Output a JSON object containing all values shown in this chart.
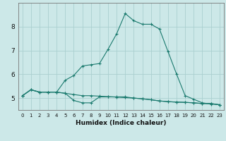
{
  "xlabel": "Humidex (Indice chaleur)",
  "x_ticks": [
    0,
    1,
    2,
    3,
    4,
    5,
    6,
    7,
    8,
    9,
    10,
    11,
    12,
    13,
    14,
    15,
    16,
    17,
    18,
    19,
    20,
    21,
    22,
    23
  ],
  "ylim": [
    4.5,
    9.0
  ],
  "yticks": [
    5,
    6,
    7,
    8
  ],
  "background_color": "#cce8e8",
  "line_color": "#1a7a6e",
  "grid_color": "#aacfcf",
  "line1_y": [
    5.1,
    5.35,
    5.25,
    5.25,
    5.25,
    5.2,
    4.9,
    4.8,
    4.8,
    5.05,
    5.05,
    5.05,
    5.05,
    5.0,
    4.97,
    4.93,
    4.88,
    4.85,
    4.83,
    4.82,
    4.8,
    4.77,
    4.77,
    4.72
  ],
  "line2_y": [
    5.1,
    5.35,
    5.25,
    5.25,
    5.25,
    5.2,
    5.15,
    5.1,
    5.1,
    5.08,
    5.06,
    5.04,
    5.02,
    5.0,
    4.97,
    4.93,
    4.88,
    4.85,
    4.83,
    4.82,
    4.8,
    4.77,
    4.77,
    4.72
  ],
  "line3_y": [
    5.1,
    5.35,
    5.25,
    5.25,
    5.25,
    5.75,
    5.95,
    6.35,
    6.4,
    6.45,
    7.05,
    7.7,
    8.55,
    8.25,
    8.1,
    8.1,
    7.9,
    6.95,
    6.0,
    5.1,
    4.95,
    4.8,
    4.75,
    4.72
  ]
}
